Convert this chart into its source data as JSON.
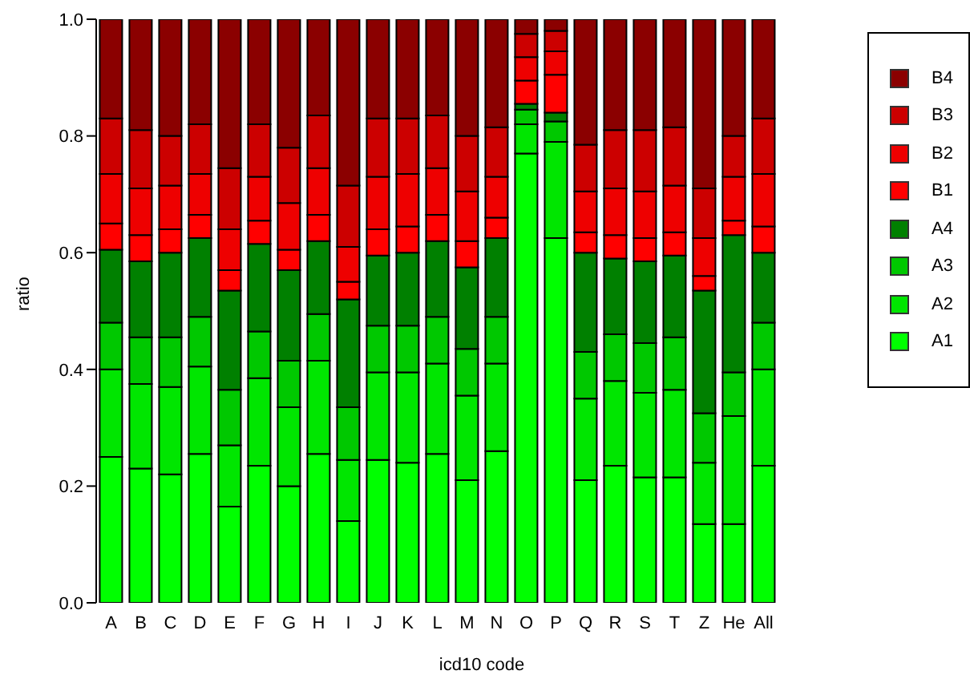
{
  "chart_data": {
    "type": "bar",
    "stacked": true,
    "xlabel": "icd10 code",
    "ylabel": "ratio",
    "categories": [
      "A",
      "B",
      "C",
      "D",
      "E",
      "F",
      "G",
      "H",
      "I",
      "J",
      "K",
      "L",
      "M",
      "N",
      "O",
      "P",
      "Q",
      "R",
      "S",
      "T",
      "Z",
      "He",
      "All",
      null,
      null,
      null
    ],
    "ylim": [
      0,
      1
    ],
    "yticks": [
      {
        "value": 0,
        "label": "0.0"
      },
      {
        "value": 0.2,
        "label": "0.2"
      },
      {
        "value": 0.4,
        "label": "0.4"
      },
      {
        "value": 0.6,
        "label": "0.6"
      },
      {
        "value": 0.8,
        "label": "0.8"
      },
      {
        "value": 1,
        "label": "1.0"
      }
    ],
    "grid": false,
    "legend": "right",
    "series": [
      {
        "name": "A1",
        "color": "#00ff00",
        "values": [
          0.25,
          0.23,
          0.22,
          0.255,
          0.165,
          0.235,
          0.2,
          0.255,
          0.14,
          0.245,
          0.24,
          0.255,
          0.21,
          0.26,
          0.77,
          0.625,
          0.21,
          0.235,
          0.215,
          0.215,
          0.135,
          0.135,
          0.235,
          0,
          0,
          0
        ]
      },
      {
        "name": "A2",
        "color": "#00e600",
        "values": [
          0.15,
          0.145,
          0.15,
          0.15,
          0.105,
          0.15,
          0.135,
          0.16,
          0.105,
          0.15,
          0.155,
          0.155,
          0.145,
          0.15,
          0.05,
          0.165,
          0.14,
          0.145,
          0.145,
          0.15,
          0.105,
          0.185,
          0.165,
          0,
          0,
          0
        ]
      },
      {
        "name": "A3",
        "color": "#00c800",
        "values": [
          0.08,
          0.08,
          0.085,
          0.085,
          0.095,
          0.08,
          0.08,
          0.08,
          0.09,
          0.08,
          0.08,
          0.08,
          0.08,
          0.08,
          0.025,
          0.035,
          0.08,
          0.08,
          0.085,
          0.09,
          0.085,
          0.075,
          0.08,
          0,
          0,
          0
        ]
      },
      {
        "name": "A4",
        "color": "#008000",
        "values": [
          0.125,
          0.13,
          0.145,
          0.135,
          0.17,
          0.15,
          0.155,
          0.125,
          0.185,
          0.12,
          0.125,
          0.13,
          0.14,
          0.135,
          0.01,
          0.015,
          0.17,
          0.13,
          0.14,
          0.14,
          0.21,
          0.235,
          0.12,
          0,
          0,
          0
        ]
      },
      {
        "name": "B1",
        "color": "#ff0000",
        "values": [
          0.045,
          0.045,
          0.04,
          0.04,
          0.035,
          0.04,
          0.035,
          0.045,
          0.03,
          0.045,
          0.045,
          0.045,
          0.045,
          0.035,
          0.04,
          0.065,
          0.035,
          0.04,
          0.04,
          0.04,
          0.025,
          0.025,
          0.045,
          0,
          0,
          0
        ]
      },
      {
        "name": "B2",
        "color": "#ee0000",
        "values": [
          0.085,
          0.08,
          0.075,
          0.07,
          0.07,
          0.075,
          0.08,
          0.08,
          0.06,
          0.09,
          0.09,
          0.08,
          0.085,
          0.07,
          0.04,
          0.04,
          0.07,
          0.08,
          0.08,
          0.08,
          0.065,
          0.075,
          0.09,
          0,
          0,
          0
        ]
      },
      {
        "name": "B3",
        "color": "#cc0000",
        "values": [
          0.095,
          0.1,
          0.085,
          0.085,
          0.105,
          0.09,
          0.095,
          0.09,
          0.105,
          0.1,
          0.095,
          0.09,
          0.095,
          0.085,
          0.04,
          0.035,
          0.08,
          0.1,
          0.105,
          0.1,
          0.085,
          0.07,
          0.095,
          0,
          0,
          0
        ]
      },
      {
        "name": "B4",
        "color": "#8b0000",
        "values": [
          0.17,
          0.19,
          0.2,
          0.18,
          0.255,
          0.18,
          0.22,
          0.165,
          0.285,
          0.17,
          0.17,
          0.165,
          0.2,
          0.185,
          0.025,
          0.02,
          0.215,
          0.19,
          0.19,
          0.185,
          0.29,
          0.2,
          0.17,
          0,
          0,
          0
        ]
      }
    ]
  }
}
